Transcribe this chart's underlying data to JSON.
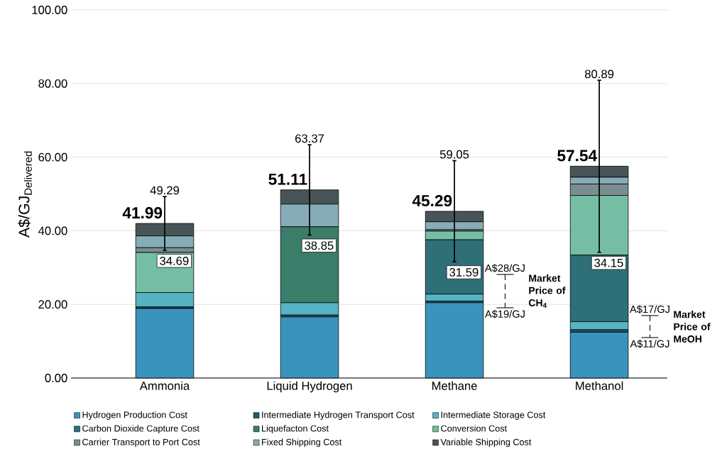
{
  "chart_data": {
    "type": "bar",
    "stacked": true,
    "ylabel": "\\text{A\\$/GJ}_{\\text{Delivered}}",
    "categories": [
      "Ammonia",
      "Liquid Hydrogen",
      "Methane",
      "Methanol"
    ],
    "series": [
      {
        "name": "Hydrogen Production Cost",
        "color": "#3a93bc",
        "values": [
          18.9,
          16.6,
          20.45,
          12.45
        ]
      },
      {
        "name": "Intermediate Hydrogen Transport Cost",
        "color": "#1f5a70",
        "values": [
          0.4,
          0.5,
          0.45,
          0.65
        ]
      },
      {
        "name": "Intermediate Storage Cost",
        "color": "#56b4c2",
        "values": [
          3.9,
          3.35,
          1.9,
          2.2
        ]
      },
      {
        "name": "Carbon Dioxide Capture Cost",
        "color": "#2e6f78",
        "values": [
          0,
          0,
          14.75,
          18.1
        ]
      },
      {
        "name": "Liquefacton Cost",
        "color": "#3a7d68",
        "values": [
          0,
          20.65,
          0,
          0
        ]
      },
      {
        "name": "Conversion Cost",
        "color": "#75bea5",
        "values": [
          10.9,
          0,
          2.35,
          16.2
        ]
      },
      {
        "name": "Carrier Transport to Port Cost",
        "color": "#7a8e91",
        "values": [
          1.3,
          0,
          0.4,
          3.1
        ]
      },
      {
        "name": "Fixed Shipping Cost",
        "color": "#86acb8",
        "values": [
          3.2,
          6.15,
          2.15,
          1.85
        ]
      },
      {
        "name": "Variable Shipping Cost",
        "color": "#485556",
        "values": [
          3.39,
          3.86,
          2.84,
          2.99
        ],
        "errors": [
          [
            34.69,
            49.29
          ],
          [
            38.85,
            63.37
          ],
          [
            31.59,
            59.05
          ],
          [
            34.15,
            80.89
          ]
        ]
      }
    ],
    "totals": [
      "41.99",
      "51.11",
      "45.29",
      "57.54"
    ],
    "ylim": [
      0,
      100
    ],
    "yticks": [
      {
        "value": 0,
        "label": "0.00"
      },
      {
        "value": 20,
        "label": "20.00"
      },
      {
        "value": 40,
        "label": "40.00"
      },
      {
        "value": 60,
        "label": "60.00"
      },
      {
        "value": 80,
        "label": "80.00"
      },
      {
        "value": 100,
        "label": "100.00"
      }
    ],
    "grid": "y",
    "legend": "bottom",
    "annotations": [
      {
        "text": "49.29",
        "x": "Ammonia",
        "y": 49.29
      },
      {
        "text": "34.69",
        "x": "Ammonia",
        "y": 34.69
      },
      {
        "text": "63.37",
        "x": "Liquid Hydrogen",
        "y": 63.37
      },
      {
        "text": "38.85",
        "x": "Liquid Hydrogen",
        "y": 38.85
      },
      {
        "text": "59.05",
        "x": "Methane",
        "y": 59.05
      },
      {
        "text": "31.59",
        "x": "Methane",
        "y": 31.59
      },
      {
        "text": "80.89",
        "x": "Methanol",
        "y": 80.89
      },
      {
        "text": "34.15",
        "x": "Methanol",
        "y": 34.15
      },
      "A$28/GJ",
      "A$19/GJ",
      "**Market Price of CH$_{4}$**",
      "A$17/GJ",
      "A$11/GJ",
      "**Market Price of MeOH**"
    ]
  }
}
